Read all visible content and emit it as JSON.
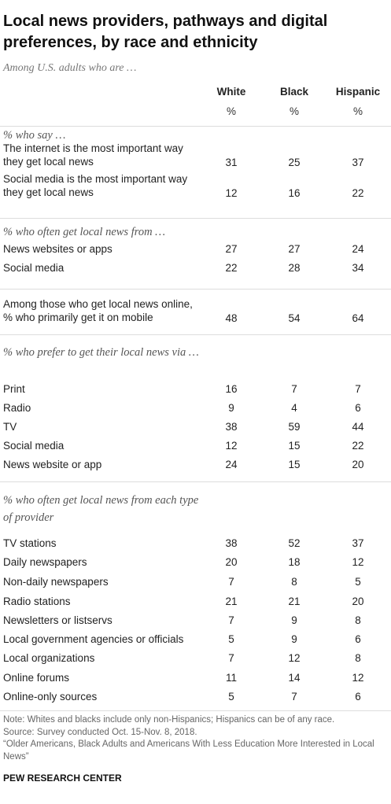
{
  "title": "Local news providers, pathways and digital preferences, by race and ethnicity",
  "subtitle": "Among U.S. adults who are …",
  "columns": [
    "White",
    "Black",
    "Hispanic"
  ],
  "units": [
    "%",
    "%",
    "%"
  ],
  "sections": [
    {
      "heading": "% who say …",
      "rows": [
        {
          "label": "The internet is the most important way they get local news",
          "values": [
            31,
            25,
            37
          ]
        },
        {
          "label": "Social media is the most important way they get local news",
          "values": [
            12,
            16,
            22
          ]
        }
      ]
    },
    {
      "heading": "% who often get local news from …",
      "rows": [
        {
          "label": "News websites or apps",
          "values": [
            27,
            27,
            24
          ]
        },
        {
          "label": "Social media",
          "values": [
            22,
            28,
            34
          ]
        }
      ]
    },
    {
      "rows": [
        {
          "label": "Among those who get local news online, % who primarily get it on mobile",
          "values": [
            48,
            54,
            64
          ]
        }
      ]
    },
    {
      "heading": "% who prefer to get their local news via …",
      "rows": [
        {
          "label": "Print",
          "values": [
            16,
            7,
            7
          ]
        },
        {
          "label": "Radio",
          "values": [
            9,
            4,
            6
          ]
        },
        {
          "label": "TV",
          "values": [
            38,
            59,
            44
          ]
        },
        {
          "label": "Social media",
          "values": [
            12,
            15,
            22
          ]
        },
        {
          "label": "News website or app",
          "values": [
            24,
            15,
            20
          ]
        }
      ]
    },
    {
      "heading": "% who often get local news from each type of provider",
      "rows": [
        {
          "label": "TV stations",
          "values": [
            38,
            52,
            37
          ]
        },
        {
          "label": "Daily newspapers",
          "values": [
            20,
            18,
            12
          ]
        },
        {
          "label": "Non-daily newspapers",
          "values": [
            7,
            8,
            5
          ]
        },
        {
          "label": "Radio stations",
          "values": [
            21,
            21,
            20
          ]
        },
        {
          "label": "Newsletters or listservs",
          "values": [
            7,
            9,
            8
          ]
        },
        {
          "label": "Local government agencies or officials",
          "values": [
            5,
            9,
            6
          ]
        },
        {
          "label": "Local organizations",
          "values": [
            7,
            12,
            8
          ]
        },
        {
          "label": "Online forums",
          "values": [
            11,
            14,
            12
          ]
        },
        {
          "label": "Online-only sources",
          "values": [
            5,
            7,
            6
          ]
        }
      ]
    }
  ],
  "notes": [
    "Note: Whites and blacks include only non-Hispanics; Hispanics can be of any race.",
    "Source: Survey conducted Oct. 15-Nov. 8, 2018.",
    "“Older Americans, Black Adults and Americans With Less Education More Interested in Local News”"
  ],
  "footer": "PEW RESEARCH CENTER"
}
